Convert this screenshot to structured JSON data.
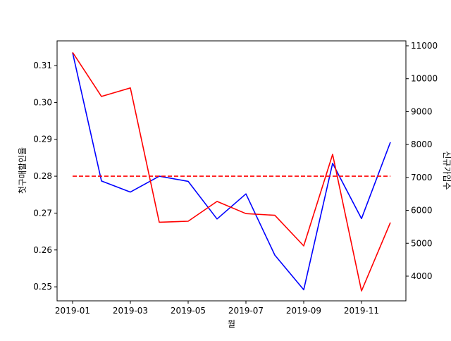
{
  "chart_data": {
    "type": "line",
    "title": "",
    "xlabel": "월",
    "ylabel_left": "첫구매할인율",
    "ylabel_right": "신규가입수",
    "grid": false,
    "x": [
      "2019-01",
      "2019-02",
      "2019-03",
      "2019-04",
      "2019-05",
      "2019-06",
      "2019-07",
      "2019-08",
      "2019-09",
      "2019-10",
      "2019-11",
      "2019-12"
    ],
    "x_ticks": [
      "2019-01",
      "2019-03",
      "2019-05",
      "2019-07",
      "2019-09",
      "2019-11"
    ],
    "y_left": {
      "ylim": [
        0.2462,
        0.3167
      ],
      "ticks": [
        0.25,
        0.26,
        0.27,
        0.28,
        0.29,
        0.3,
        0.31
      ],
      "tick_labels": [
        "0.25",
        "0.26",
        "0.27",
        "0.28",
        "0.29",
        "0.30",
        "0.31"
      ]
    },
    "y_right": {
      "ylim": [
        3250,
        11150
      ],
      "ticks": [
        4000,
        5000,
        6000,
        7000,
        8000,
        9000,
        10000,
        11000
      ],
      "tick_labels": [
        "4000",
        "5000",
        "6000",
        "7000",
        "8000",
        "9000",
        "10000",
        "11000"
      ]
    },
    "series": [
      {
        "axis": "left",
        "color": "#0000ff",
        "style": "solid",
        "values": [
          0.3135,
          0.2787,
          0.2757,
          0.28,
          0.2786,
          0.2684,
          0.2752,
          0.2586,
          0.2492,
          0.2835,
          0.2685,
          0.2892
        ]
      },
      {
        "axis": "right",
        "color": "#ff0000",
        "style": "solid",
        "values": [
          10800,
          9460,
          9720,
          5640,
          5670,
          6270,
          5900,
          5850,
          4920,
          7700,
          3550,
          5630
        ]
      },
      {
        "axis": "left",
        "color": "#ff0000",
        "style": "dashed",
        "values": [
          0.28,
          0.28,
          0.28,
          0.28,
          0.28,
          0.28,
          0.28,
          0.28,
          0.28,
          0.28,
          0.28,
          0.28
        ]
      }
    ]
  }
}
